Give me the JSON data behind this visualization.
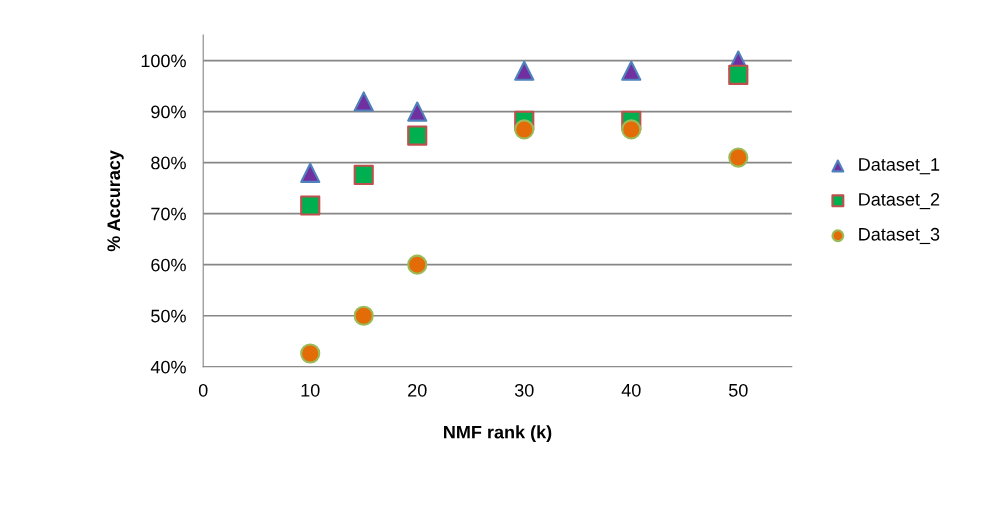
{
  "chart_data": {
    "type": "scatter",
    "xlabel": "NMF rank (k)",
    "ylabel": "% Accuracy",
    "x": [
      10,
      15,
      20,
      30,
      40,
      50
    ],
    "series": [
      {
        "name": "Dataset_1",
        "color": "#7030a0",
        "marker": "triangle",
        "values": [
          78,
          92,
          90,
          98,
          98,
          100
        ]
      },
      {
        "name": "Dataset_2",
        "color": "#00b050",
        "marker": "square",
        "values": [
          71.6,
          77.6,
          85.3,
          88.2,
          88.2,
          97.2
        ]
      },
      {
        "name": "Dataset_3",
        "color": "#e36c09",
        "marker": "circle",
        "values": [
          42.6,
          50,
          60,
          86.5,
          86.5,
          81
        ]
      }
    ],
    "xlim": [
      0,
      55
    ],
    "xticks": [
      0,
      10,
      20,
      30,
      40,
      50
    ],
    "ylim": [
      40,
      105
    ],
    "yticks": [
      {
        "value": 40,
        "label": "40%"
      },
      {
        "value": 50,
        "label": "50%"
      },
      {
        "value": 60,
        "label": "60%"
      },
      {
        "value": 70,
        "label": "70%"
      },
      {
        "value": 80,
        "label": "80%"
      },
      {
        "value": 90,
        "label": "90%"
      },
      {
        "value": 100,
        "label": "100%"
      }
    ],
    "grid": "y",
    "legend": "right"
  }
}
